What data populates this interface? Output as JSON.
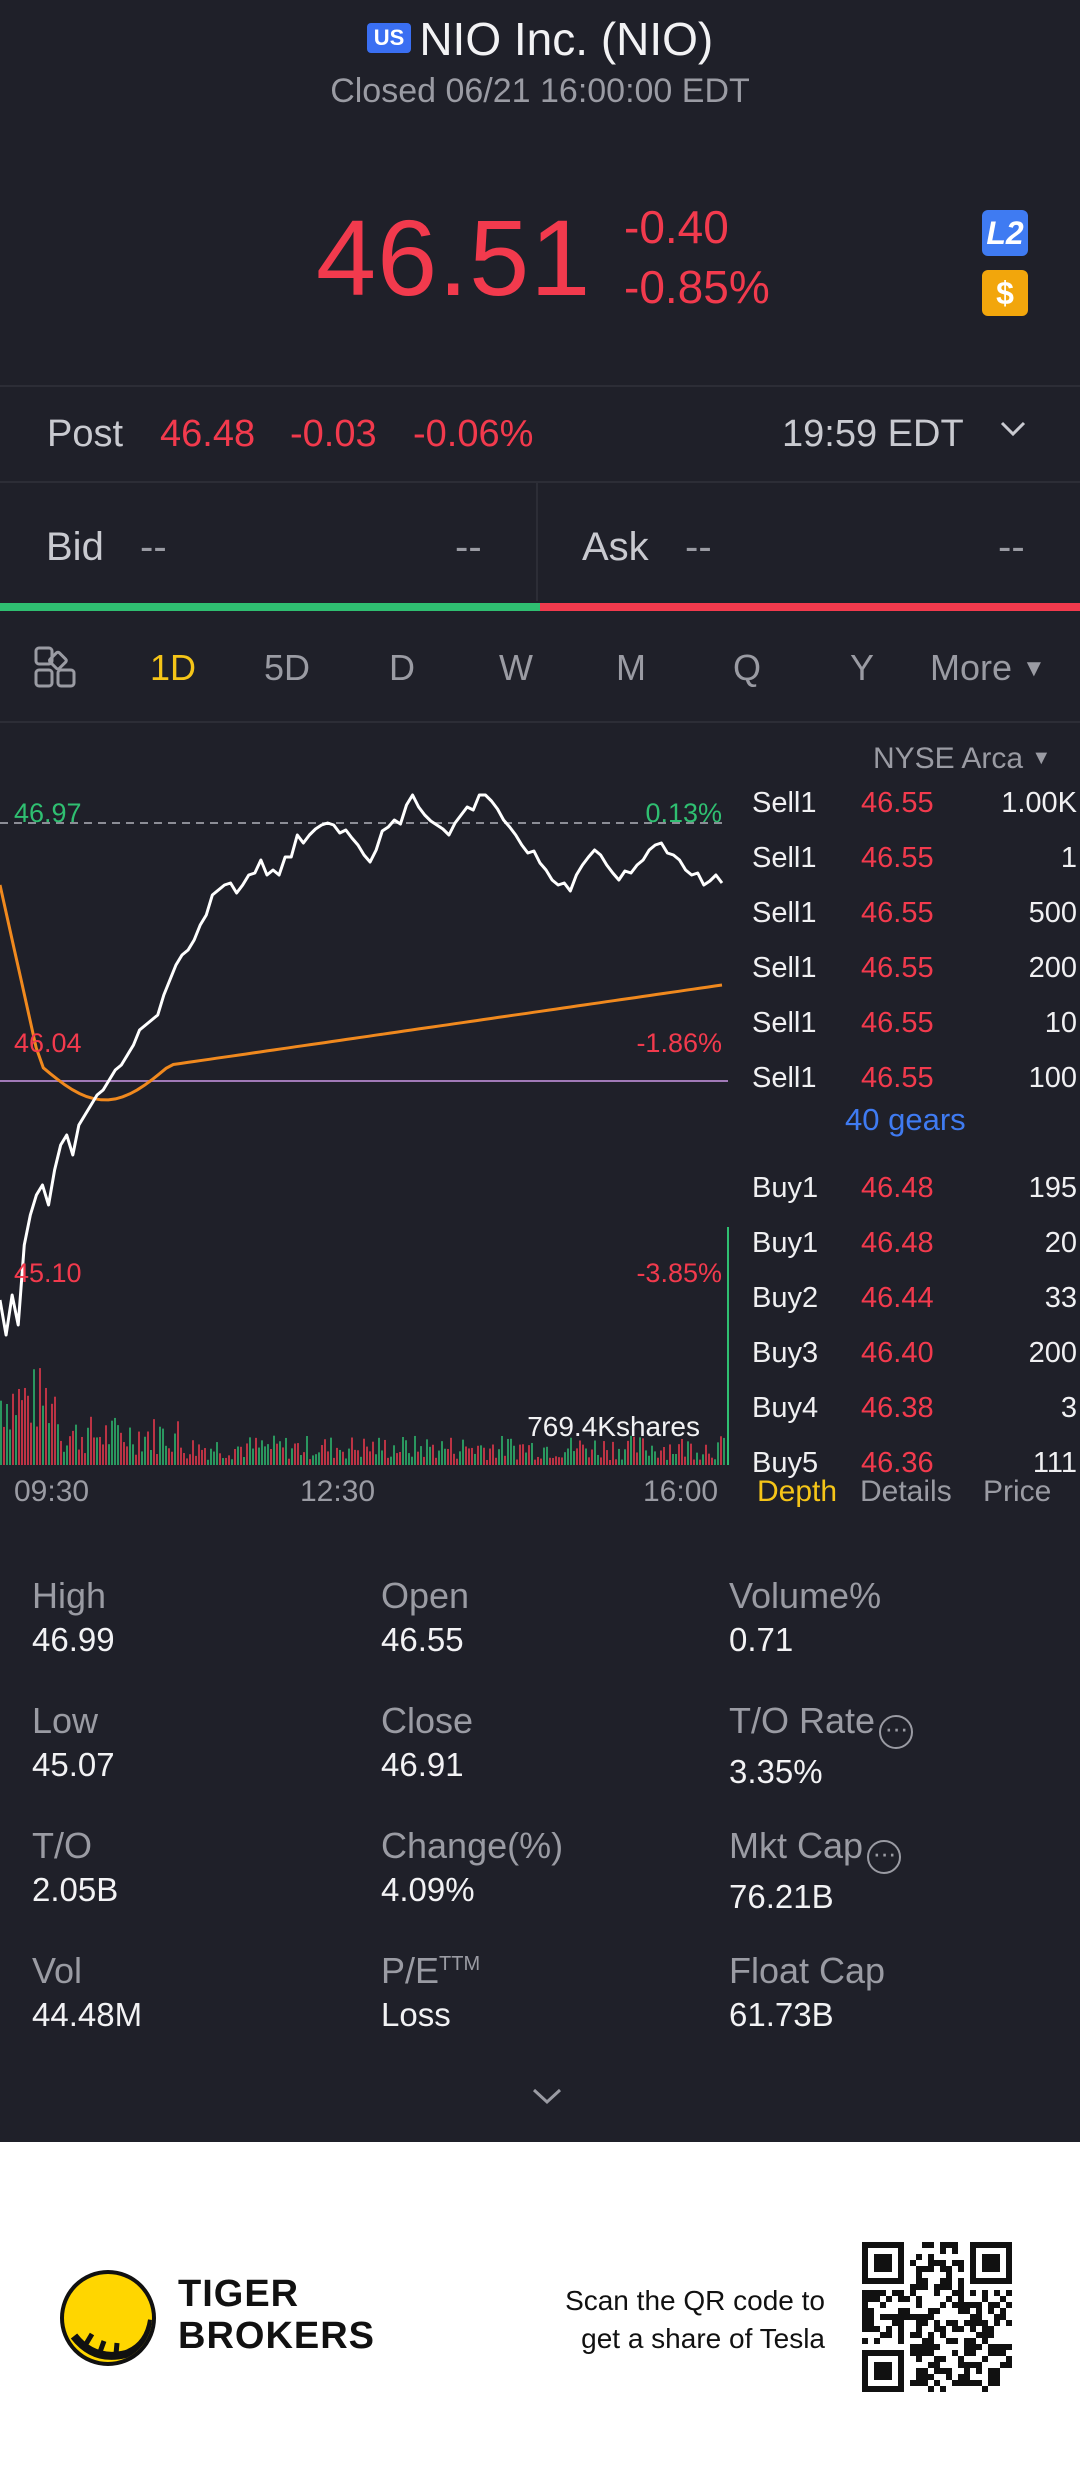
{
  "header": {
    "region_badge": "US",
    "title": "NIO Inc. (NIO)",
    "status": "Closed 06/21 16:00:00 EDT",
    "price": "46.51",
    "change": "-0.40",
    "change_pct": "-0.85%",
    "badge_l2": "L2",
    "badge_currency": "$"
  },
  "post": {
    "label": "Post",
    "price": "46.48",
    "change": "-0.03",
    "change_pct": "-0.06%",
    "time": "19:59 EDT"
  },
  "bidask": {
    "bid_label": "Bid",
    "bid_price": "--",
    "bid_size": "--",
    "ask_label": "Ask",
    "ask_price": "--",
    "ask_size": "--"
  },
  "tabs": [
    "1D",
    "5D",
    "D",
    "W",
    "M",
    "Q",
    "Y",
    "More"
  ],
  "active_tab": "1D",
  "chart": {
    "high_label": "46.97",
    "high_pct": "0.13%",
    "mid_label": "46.04",
    "mid_pct": "-1.86%",
    "low_label": "45.10",
    "low_pct": "-3.85%",
    "volume_label": "769.4Kshares",
    "time_labels": [
      "09:30",
      "12:30",
      "16:00"
    ]
  },
  "book": {
    "exchange": "NYSE Arca",
    "gears": "40 gears",
    "rows": [
      {
        "side": "Sell1",
        "price": "46.55",
        "qty": "1.00K"
      },
      {
        "side": "Sell1",
        "price": "46.55",
        "qty": "1"
      },
      {
        "side": "Sell1",
        "price": "46.55",
        "qty": "500"
      },
      {
        "side": "Sell1",
        "price": "46.55",
        "qty": "200"
      },
      {
        "side": "Sell1",
        "price": "46.55",
        "qty": "10"
      },
      {
        "side": "Sell1",
        "price": "46.55",
        "qty": "100"
      },
      {
        "side": "Buy1",
        "price": "46.48",
        "qty": "195"
      },
      {
        "side": "Buy1",
        "price": "46.48",
        "qty": "20"
      },
      {
        "side": "Buy2",
        "price": "46.44",
        "qty": "33"
      },
      {
        "side": "Buy3",
        "price": "46.40",
        "qty": "200"
      },
      {
        "side": "Buy4",
        "price": "46.38",
        "qty": "3"
      },
      {
        "side": "Buy5",
        "price": "46.36",
        "qty": "111"
      }
    ],
    "tabs": [
      "Depth",
      "Details",
      "Price"
    ]
  },
  "stats": {
    "high": {
      "label": "High",
      "value": "46.99"
    },
    "open": {
      "label": "Open",
      "value": "46.55"
    },
    "volume_pct": {
      "label": "Volume%",
      "value": "0.71"
    },
    "low": {
      "label": "Low",
      "value": "45.07"
    },
    "close": {
      "label": "Close",
      "value": "46.91"
    },
    "to_rate": {
      "label": "T/O Rate",
      "value": "3.35%"
    },
    "to": {
      "label": "T/O",
      "value": "2.05B"
    },
    "change": {
      "label": "Change(%)",
      "value": "4.09%"
    },
    "mkt_cap": {
      "label": "Mkt Cap",
      "value": "76.21B"
    },
    "vol": {
      "label": "Vol",
      "value": "44.48M"
    },
    "pe": {
      "label": "P/E",
      "label_sup": "TTM",
      "value": "Loss"
    },
    "float_cap": {
      "label": "Float Cap",
      "value": "61.73B"
    }
  },
  "footer": {
    "brand_line1": "TIGER",
    "brand_line2": "BROKERS",
    "scan_line1": "Scan the QR code to",
    "scan_line2": "get a share of Tesla"
  },
  "colors": {
    "background": "#1f2029",
    "up": "#2fbf71",
    "down": "#f23a4d",
    "accent": "#f5c518",
    "link": "#3f7bf2",
    "avg_line": "#f0891e"
  }
}
